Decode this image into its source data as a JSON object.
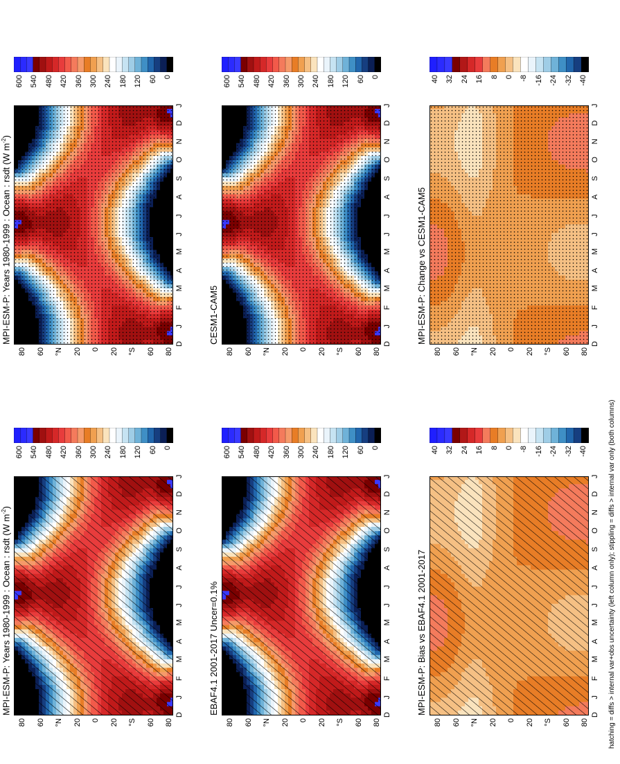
{
  "figure": {
    "footnote": "hatching = diffs > internal var+obs uncertainty (left column only); stippling = diffs > internal var only (both columns)",
    "months": [
      "D",
      "J",
      "F",
      "M",
      "A",
      "M",
      "J",
      "J",
      "A",
      "S",
      "O",
      "N",
      "D",
      "J"
    ],
    "lat_labels": [
      "80",
      "60",
      "°N",
      "20",
      "0",
      "20",
      "°S",
      "60",
      "80"
    ],
    "panels": [
      {
        "title": "MPI-ESM-P: Years 1980-1999 : Ocean : rsdt (W m",
        "title_sup": "-2",
        "title_tail": ")",
        "kind": "abs",
        "pattern": "hatch"
      },
      {
        "title": "MPI-ESM-P: Years 1980-1999 : Ocean : rsdt (W m",
        "title_sup": "-2",
        "title_tail": ")",
        "kind": "abs",
        "pattern": "stipple"
      },
      {
        "title": "EBAF4.1 2001-2017 Uncer=0.1%",
        "title_sup": "",
        "title_tail": "",
        "kind": "abs",
        "pattern": "hatch"
      },
      {
        "title": "CESM1-CAM5",
        "title_sup": "",
        "title_tail": "",
        "kind": "abs",
        "pattern": "stipple"
      },
      {
        "title": "MPI-ESM-P: Bias vs EBAF4.1 2001-2017",
        "title_sup": "",
        "title_tail": "",
        "kind": "diff",
        "pattern": "hatch"
      },
      {
        "title": "MPI-ESM-P: Change vs CESM1-CAM5",
        "title_sup": "",
        "title_tail": "",
        "kind": "diff",
        "pattern": "stipple"
      }
    ],
    "colorbars": {
      "abs": {
        "labels": [
          "600",
          "540",
          "480",
          "420",
          "360",
          "300",
          "240",
          "180",
          "120",
          "60",
          "0"
        ],
        "colors": [
          "#1f1fff",
          "#2b2bff",
          "#3939ff",
          "#7a0000",
          "#a01010",
          "#c01a1a",
          "#d52828",
          "#e83c3c",
          "#f25a4a",
          "#f47b5c",
          "#f59a6a",
          "#e87d26",
          "#f0a050",
          "#f5c084",
          "#fae3bd",
          "#ffffff",
          "#eaf4fb",
          "#c6e3f2",
          "#9fcde6",
          "#6fb2d8",
          "#3f8fc5",
          "#2166ac",
          "#163e80",
          "#0b1f55",
          "#000000"
        ]
      },
      "diff": {
        "labels": [
          "40",
          "32",
          "24",
          "16",
          "8",
          "0",
          "-8",
          "-16",
          "-24",
          "-32",
          "-40"
        ],
        "colors": [
          "#1f1fff",
          "#2b2bff",
          "#3939ff",
          "#7a0000",
          "#b21818",
          "#d52828",
          "#e83c3c",
          "#f47b5c",
          "#e87d26",
          "#f0a050",
          "#f5c084",
          "#fae3bd",
          "#ffffff",
          "#eaf4fb",
          "#c6e3f2",
          "#9fcde6",
          "#6fb2d8",
          "#3f8fc5",
          "#2166ac",
          "#163e80",
          "#000000"
        ]
      }
    }
  },
  "chart_data": [
    {
      "type": "heatmap",
      "title": "MPI-ESM-P: Years 1980-1999 : Ocean : rsdt (W m-2)",
      "x": [
        "D",
        "J",
        "F",
        "M",
        "A",
        "M",
        "J",
        "J",
        "A",
        "S",
        "O",
        "N",
        "D",
        "J"
      ],
      "y": [
        "80",
        "60",
        "°N",
        "20",
        "0",
        "20",
        "°S",
        "60",
        "80"
      ],
      "zlim": [
        0,
        600
      ],
      "description_values": {
        "summer_pole_max": 560,
        "equator": 420,
        "winter_pole": 0
      }
    },
    {
      "type": "heatmap",
      "title": "MPI-ESM-P: Years 1980-1999 : Ocean : rsdt (W m-2)",
      "x": [
        "D",
        "J",
        "F",
        "M",
        "A",
        "M",
        "J",
        "J",
        "A",
        "S",
        "O",
        "N",
        "D",
        "J"
      ],
      "y": [
        "80",
        "60",
        "°N",
        "20",
        "0",
        "20",
        "°S",
        "60",
        "80"
      ],
      "zlim": [
        0,
        600
      ]
    },
    {
      "type": "heatmap",
      "title": "EBAF4.1 2001-2017 Uncer=0.1%",
      "x": [
        "D",
        "J",
        "F",
        "M",
        "A",
        "M",
        "J",
        "J",
        "A",
        "S",
        "O",
        "N",
        "D",
        "J"
      ],
      "y": [
        "80",
        "60",
        "°N",
        "20",
        "0",
        "20",
        "°S",
        "60",
        "80"
      ],
      "zlim": [
        0,
        600
      ]
    },
    {
      "type": "heatmap",
      "title": "CESM1-CAM5",
      "x": [
        "D",
        "J",
        "F",
        "M",
        "A",
        "M",
        "J",
        "J",
        "A",
        "S",
        "O",
        "N",
        "D",
        "J"
      ],
      "y": [
        "80",
        "60",
        "°N",
        "20",
        "0",
        "20",
        "°S",
        "60",
        "80"
      ],
      "zlim": [
        0,
        600
      ]
    },
    {
      "type": "heatmap",
      "title": "MPI-ESM-P: Bias vs EBAF4.1 2001-2017",
      "x": [
        "D",
        "J",
        "F",
        "M",
        "A",
        "M",
        "J",
        "J",
        "A",
        "S",
        "O",
        "N",
        "D",
        "J"
      ],
      "y": [
        "80",
        "60",
        "°N",
        "20",
        "0",
        "20",
        "°S",
        "60",
        "80"
      ],
      "zlim": [
        -40,
        40
      ],
      "description_values": {
        "range": [
          -8,
          16
        ]
      }
    },
    {
      "type": "heatmap",
      "title": "MPI-ESM-P: Change vs CESM1-CAM5",
      "x": [
        "D",
        "J",
        "F",
        "M",
        "A",
        "M",
        "J",
        "J",
        "A",
        "S",
        "O",
        "N",
        "D",
        "J"
      ],
      "y": [
        "80",
        "60",
        "°N",
        "20",
        "0",
        "20",
        "°S",
        "60",
        "80"
      ],
      "zlim": [
        -40,
        40
      ],
      "description_values": {
        "range": [
          -8,
          16
        ]
      }
    }
  ]
}
